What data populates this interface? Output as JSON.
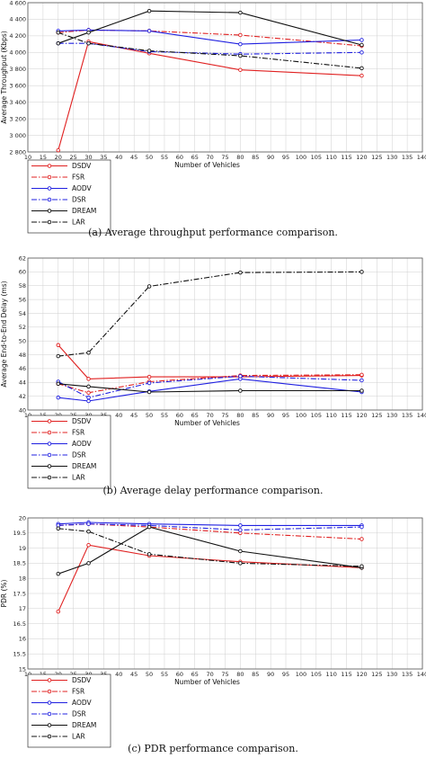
{
  "chart_data": [
    {
      "type": "line",
      "caption": "(a) Average throughput performance comparison.",
      "xlabel": "Number of Vehicles",
      "ylabel": "Average Throughput (Kbps)",
      "xlim": [
        10,
        140
      ],
      "ylim": [
        2800,
        4600
      ],
      "xticks": [
        10,
        15,
        20,
        25,
        30,
        35,
        40,
        45,
        50,
        55,
        60,
        65,
        70,
        75,
        80,
        85,
        90,
        95,
        100,
        105,
        110,
        115,
        120,
        125,
        130,
        135,
        140
      ],
      "yticks": [
        2800,
        3000,
        3200,
        3400,
        3600,
        3800,
        4000,
        4200,
        4400,
        4600
      ],
      "ytick_labels": [
        "2 800",
        "3 000",
        "3 200",
        "3 400",
        "3 600",
        "3 800",
        "4 000",
        "4 200",
        "4 400",
        "4 600"
      ],
      "x": [
        20,
        30,
        50,
        80,
        120
      ],
      "grid": true,
      "legend_position": "below",
      "series": [
        {
          "name": "DSDV",
          "values": [
            2820,
            4130,
            3990,
            3790,
            3720
          ],
          "color": "#e02020",
          "dash": "",
          "marker": "circle"
        },
        {
          "name": "FSR",
          "values": [
            4240,
            4270,
            4260,
            4210,
            4080
          ],
          "color": "#e02020",
          "dash": "6,2,1.5,2",
          "marker": "circle"
        },
        {
          "name": "AODV",
          "values": [
            4260,
            4270,
            4260,
            4100,
            4150
          ],
          "color": "#2020e0",
          "dash": "",
          "marker": "circle"
        },
        {
          "name": "DSR",
          "values": [
            4110,
            4110,
            4010,
            3980,
            4000
          ],
          "color": "#2020e0",
          "dash": "6,2,1.5,2",
          "marker": "circle"
        },
        {
          "name": "DREAM",
          "values": [
            4110,
            4240,
            4500,
            4480,
            4090
          ],
          "color": "#111111",
          "dash": "",
          "marker": "circle"
        },
        {
          "name": "LAR",
          "values": [
            4240,
            4110,
            4020,
            3960,
            3810
          ],
          "color": "#111111",
          "dash": "6,2,1.5,2",
          "marker": "circle"
        }
      ]
    },
    {
      "type": "line",
      "caption": "(b) Average delay performance comparison.",
      "xlabel": "Number of Vehicles",
      "ylabel": "Average End-to-End Delay (ms)",
      "xlim": [
        10,
        140
      ],
      "ylim": [
        40,
        62
      ],
      "xticks": [
        10,
        15,
        20,
        25,
        30,
        35,
        40,
        45,
        50,
        55,
        60,
        65,
        70,
        75,
        80,
        85,
        90,
        95,
        100,
        105,
        110,
        115,
        120,
        125,
        130,
        135,
        140
      ],
      "yticks": [
        40,
        42,
        44,
        46,
        48,
        50,
        52,
        54,
        56,
        58,
        60,
        62
      ],
      "ytick_labels": [
        "40",
        "42",
        "44",
        "46",
        "48",
        "50",
        "52",
        "54",
        "56",
        "58",
        "60",
        "62"
      ],
      "x": [
        20,
        30,
        50,
        80,
        120
      ],
      "grid": true,
      "legend_position": "below",
      "series": [
        {
          "name": "DSDV",
          "values": [
            49.4,
            44.5,
            44.8,
            44.8,
            45.0
          ],
          "color": "#e02020",
          "dash": "",
          "marker": "circle"
        },
        {
          "name": "FSR",
          "values": [
            43.8,
            42.5,
            44.1,
            45.0,
            45.1
          ],
          "color": "#e02020",
          "dash": "6,2,1.5,2",
          "marker": "circle"
        },
        {
          "name": "AODV",
          "values": [
            41.8,
            41.3,
            42.7,
            44.5,
            42.6
          ],
          "color": "#2020e0",
          "dash": "",
          "marker": "circle"
        },
        {
          "name": "DSR",
          "values": [
            44.1,
            41.8,
            43.9,
            44.9,
            44.3
          ],
          "color": "#2020e0",
          "dash": "6,2,1.5,2",
          "marker": "circle"
        },
        {
          "name": "DREAM",
          "values": [
            43.8,
            43.4,
            42.6,
            42.8,
            42.8
          ],
          "color": "#111111",
          "dash": "",
          "marker": "circle"
        },
        {
          "name": "LAR",
          "values": [
            47.8,
            48.3,
            57.9,
            59.9,
            60.0
          ],
          "color": "#111111",
          "dash": "6,2,1.5,2",
          "marker": "circle"
        }
      ]
    },
    {
      "type": "line",
      "caption": "(c) PDR performance comparison.",
      "xlabel": "Number of Vehicles",
      "ylabel": "PDR (%)",
      "xlim": [
        10,
        140
      ],
      "ylim": [
        15,
        20
      ],
      "xticks": [
        10,
        15,
        20,
        25,
        30,
        35,
        40,
        45,
        50,
        55,
        60,
        65,
        70,
        75,
        80,
        85,
        90,
        95,
        100,
        105,
        110,
        115,
        120,
        125,
        130,
        135,
        140
      ],
      "yticks": [
        15,
        15.5,
        16,
        16.5,
        17,
        17.5,
        18,
        18.5,
        19,
        19.5,
        20
      ],
      "ytick_labels": [
        "15",
        "15.5",
        "16",
        "16.5",
        "17",
        "17.5",
        "18",
        "18.5",
        "19",
        "19.5",
        "20"
      ],
      "x": [
        20,
        30,
        50,
        80,
        120
      ],
      "grid": true,
      "legend_position": "below",
      "series": [
        {
          "name": "DSDV",
          "values": [
            16.9,
            19.1,
            18.75,
            18.55,
            18.35
          ],
          "color": "#e02020",
          "dash": "",
          "marker": "circle"
        },
        {
          "name": "FSR",
          "values": [
            19.75,
            19.8,
            19.7,
            19.5,
            19.3
          ],
          "color": "#e02020",
          "dash": "6,2,1.5,2",
          "marker": "circle"
        },
        {
          "name": "AODV",
          "values": [
            19.8,
            19.85,
            19.8,
            19.75,
            19.75
          ],
          "color": "#2020e0",
          "dash": "",
          "marker": "circle"
        },
        {
          "name": "DSR",
          "values": [
            19.75,
            19.8,
            19.75,
            19.6,
            19.7
          ],
          "color": "#2020e0",
          "dash": "6,2,1.5,2",
          "marker": "circle"
        },
        {
          "name": "DREAM",
          "values": [
            18.15,
            18.5,
            19.7,
            18.9,
            18.35
          ],
          "color": "#111111",
          "dash": "",
          "marker": "circle"
        },
        {
          "name": "LAR",
          "values": [
            19.65,
            19.55,
            18.8,
            18.5,
            18.4
          ],
          "color": "#111111",
          "dash": "6,2,1.5,2",
          "marker": "circle"
        }
      ]
    }
  ]
}
